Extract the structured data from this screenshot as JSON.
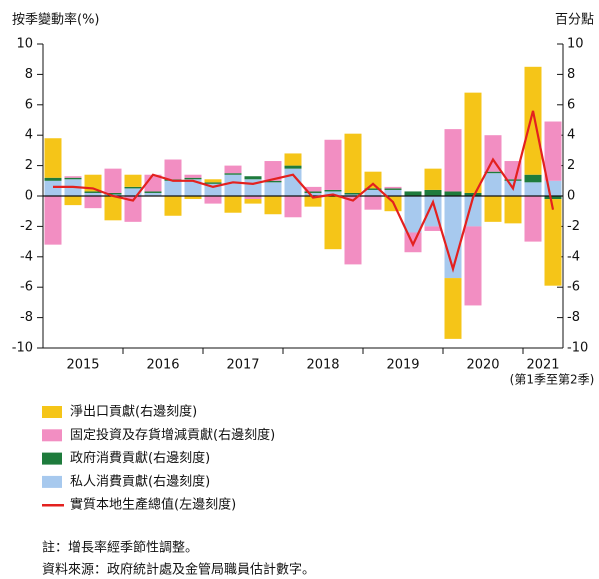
{
  "chart_data": {
    "type": "bar_line",
    "y_label": "按季變動率(%)",
    "y2_label": "百分點",
    "categories": [
      null,
      "2015",
      null,
      null,
      null,
      "2016",
      null,
      null,
      null,
      "2017",
      null,
      null,
      null,
      "2018",
      null,
      null,
      null,
      "2019",
      null,
      null,
      null,
      "2020",
      null,
      null,
      "2021",
      null
    ],
    "x_note": "(第1季至第2季)",
    "ylim": [
      -10,
      10
    ],
    "yticks": [
      -10,
      -8,
      -6,
      -4,
      -2,
      0,
      2,
      4,
      6,
      8,
      10
    ],
    "y2lim": [
      -10,
      10
    ],
    "y2ticks": [
      -10,
      -8,
      -6,
      -4,
      -2,
      0,
      2,
      4,
      6,
      8,
      10
    ],
    "series": [
      {
        "name": "淨出口貢獻(右邊刻度)",
        "kind": "bar",
        "axis": "y2",
        "color": "#f5c518",
        "values": [
          2.6,
          -0.6,
          1.1,
          -1.6,
          0.8,
          0,
          -1.3,
          -0.2,
          0.2,
          -1.1,
          -0.3,
          -1.2,
          0.8,
          -0.7,
          -3.5,
          3.9,
          1.1,
          -1.0,
          0,
          1.4,
          -4.0,
          6.6,
          -1.7,
          -1.8,
          7.1,
          -5.7
        ]
      },
      {
        "name": "固定投資及存貨增減貢獻(右邊刻度)",
        "kind": "bar",
        "axis": "y2",
        "color": "#f28ec2",
        "values": [
          -3.2,
          0.1,
          -0.8,
          1.6,
          -1.7,
          1.1,
          1.3,
          0.2,
          -0.5,
          0.5,
          -0.2,
          1.3,
          -1.4,
          0.3,
          3.3,
          -4.5,
          -0.9,
          0.1,
          -1.3,
          -0.3,
          4.1,
          -5.2,
          2.4,
          1.2,
          -3.0,
          3.9
        ]
      },
      {
        "name": "政府消費貢獻(右邊刻度)",
        "kind": "bar",
        "axis": "y2",
        "color": "#1e7b3c",
        "values": [
          0.2,
          0.1,
          0.1,
          0.1,
          0.1,
          0.1,
          0.1,
          0.1,
          0.1,
          0.1,
          0.2,
          0.1,
          0.2,
          0.1,
          0.1,
          0.1,
          0.1,
          0.1,
          0.3,
          0.4,
          0.3,
          0.2,
          0.1,
          0.1,
          0.5,
          -0.2
        ]
      },
      {
        "name": "私人消費貢獻(右邊刻度)",
        "kind": "bar",
        "axis": "y2",
        "color": "#a7c9ee",
        "values": [
          1.0,
          1.1,
          0.2,
          0.1,
          0.5,
          0.2,
          1.0,
          1.1,
          0.8,
          1.4,
          1.1,
          0.9,
          1.8,
          0.2,
          0.3,
          0.1,
          0.4,
          0.4,
          -2.4,
          -2.0,
          -5.4,
          -2.0,
          1.5,
          1.0,
          0.9,
          1.0
        ]
      },
      {
        "name": "實質本地生產總值(左邊刻度)",
        "kind": "line",
        "axis": "y",
        "color": "#e3211f",
        "values": [
          0.6,
          0.6,
          0.5,
          0.0,
          -0.3,
          1.4,
          1.0,
          1.0,
          0.6,
          0.9,
          0.8,
          1.1,
          1.4,
          -0.1,
          0.1,
          -0.3,
          0.8,
          -0.4,
          -3.2,
          -0.4,
          -4.8,
          -0.1,
          2.4,
          0.5,
          5.6,
          -0.9
        ]
      }
    ]
  },
  "notes": [
    "註：增長率經季節性調整。",
    "資料來源：政府統計處及金管局職員估計數字。"
  ]
}
